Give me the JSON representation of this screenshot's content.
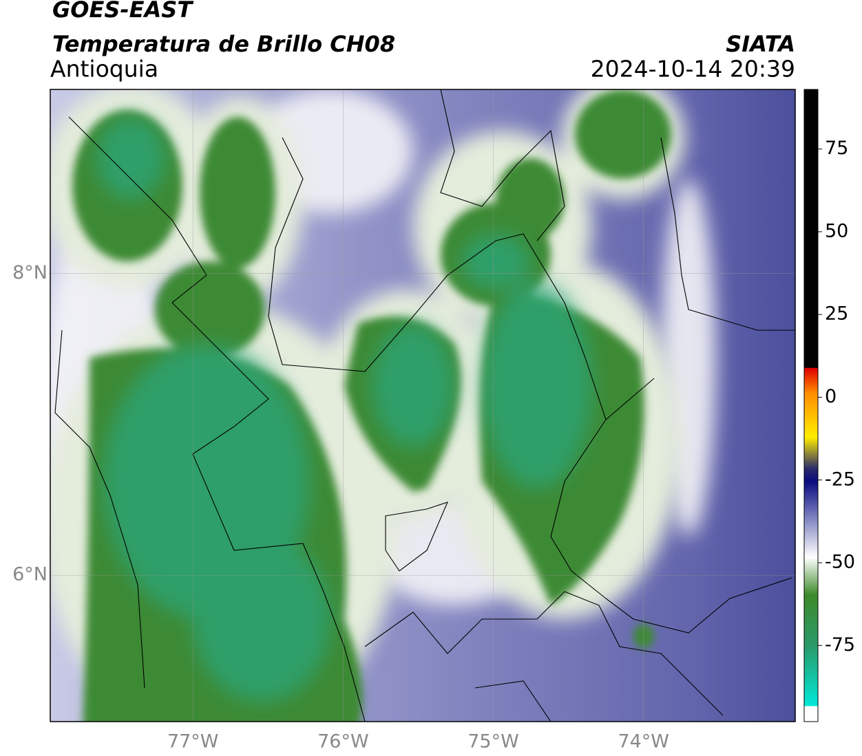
{
  "header": {
    "title": "GOES-EAST",
    "subtitle": "Temperatura de Brillo CH08",
    "region": "Antioquia",
    "source": "SIATA",
    "datetime": "2024-10-14 20:39"
  },
  "map": {
    "xlim": [
      -77.95,
      -72.99
    ],
    "ylim": [
      5.03,
      9.22
    ],
    "xticks": [
      {
        "value": -77,
        "label": "77°W"
      },
      {
        "value": -76,
        "label": "76°W"
      },
      {
        "value": -75,
        "label": "75°W"
      },
      {
        "value": -74,
        "label": "74°W"
      }
    ],
    "yticks": [
      {
        "value": 8,
        "label": "8°N"
      },
      {
        "value": 6,
        "label": "6°N"
      }
    ]
  },
  "colorbar": {
    "lim": [
      -98,
      93
    ],
    "ticks": [
      75,
      50,
      25,
      0,
      -25,
      -50,
      -75
    ]
  }
}
